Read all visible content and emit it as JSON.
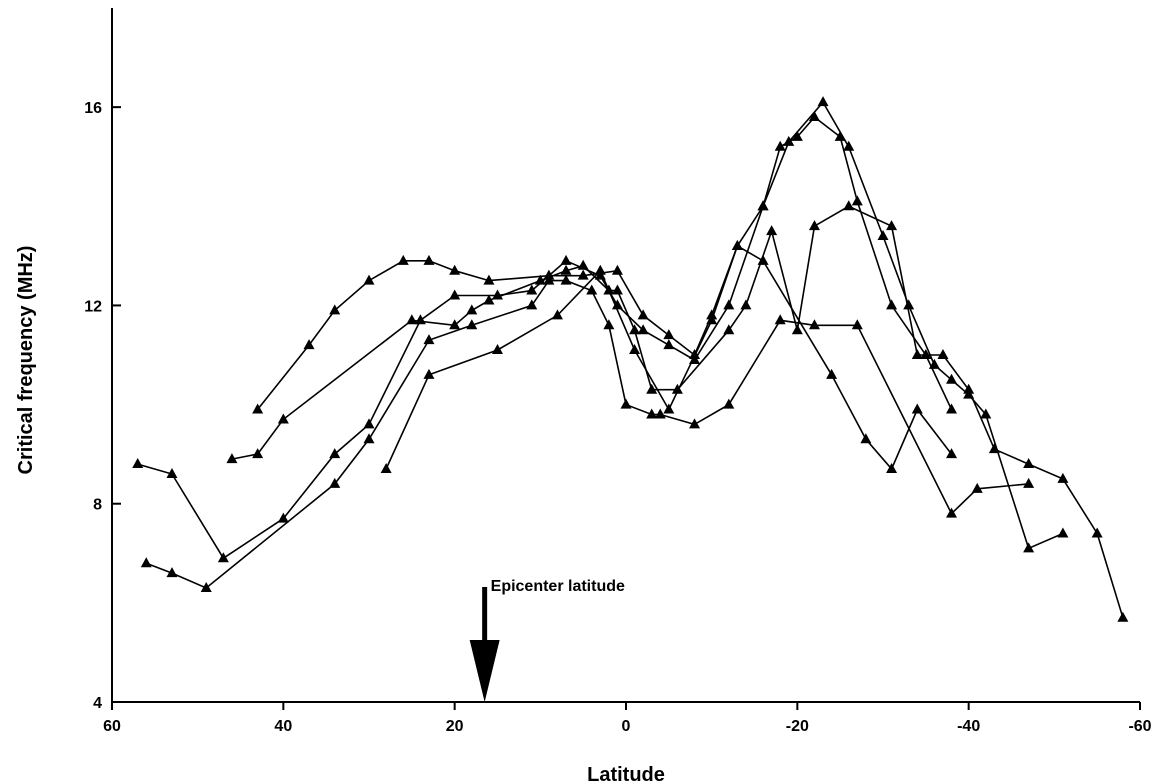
{
  "chart_data": {
    "type": "line",
    "xlabel": "Latitude",
    "ylabel": "Critical frequency (MHz)",
    "xlim": [
      60,
      -60
    ],
    "ylim": [
      4,
      18
    ],
    "x_ticks": [
      60,
      40,
      20,
      0,
      -20,
      -40,
      -60
    ],
    "y_ticks": [
      4,
      8,
      12,
      16
    ],
    "x_tick_labels": [
      "60",
      "40",
      "20",
      "0",
      "-20",
      "-40",
      "-60"
    ],
    "y_tick_labels": [
      "4",
      "8",
      "12",
      "16"
    ],
    "grid": false,
    "marker": "triangle",
    "annotation": {
      "text": "Epicenter latitude",
      "x": 16.5
    },
    "series": [
      {
        "values": [
          [
            57,
            8.8
          ],
          [
            53,
            8.6
          ],
          [
            47,
            6.9
          ],
          [
            40,
            7.7
          ],
          [
            34,
            9.0
          ],
          [
            30,
            9.6
          ],
          [
            24,
            11.7
          ],
          [
            20,
            12.2
          ],
          [
            15,
            12.2
          ],
          [
            11,
            12.3
          ],
          [
            7,
            12.9
          ],
          [
            3,
            12.6
          ],
          [
            1,
            12.0
          ],
          [
            -2,
            11.5
          ],
          [
            -5,
            11.2
          ],
          [
            -8,
            10.9
          ],
          [
            -12,
            12.0
          ],
          [
            -16,
            14.0
          ],
          [
            -18,
            15.2
          ],
          [
            -20,
            15.4
          ],
          [
            -22,
            15.8
          ],
          [
            -25,
            15.4
          ],
          [
            -27,
            14.1
          ],
          [
            -31,
            12.0
          ],
          [
            -35,
            11.0
          ],
          [
            -38,
            9.9
          ]
        ]
      },
      {
        "values": [
          [
            43,
            9.9
          ],
          [
            37,
            11.2
          ],
          [
            34,
            11.9
          ],
          [
            30,
            12.5
          ],
          [
            26,
            12.9
          ],
          [
            23,
            12.9
          ],
          [
            20,
            12.7
          ],
          [
            16,
            12.5
          ],
          [
            9,
            12.6
          ],
          [
            5,
            12.6
          ],
          [
            1,
            12.7
          ],
          [
            -2,
            11.8
          ],
          [
            -5,
            11.4
          ],
          [
            -8,
            11.0
          ],
          [
            -10,
            11.8
          ],
          [
            -13,
            13.2
          ],
          [
            -16,
            14.0
          ],
          [
            -19,
            15.3
          ],
          [
            -23,
            16.1
          ],
          [
            -26,
            15.2
          ],
          [
            -30,
            13.4
          ],
          [
            -33,
            12.0
          ],
          [
            -36,
            10.8
          ],
          [
            -38,
            10.5
          ],
          [
            -40,
            10.2
          ],
          [
            -42,
            9.8
          ],
          [
            -47,
            7.1
          ],
          [
            -51,
            7.4
          ]
        ]
      },
      {
        "values": [
          [
            46,
            8.9
          ],
          [
            43,
            9.0
          ],
          [
            40,
            9.7
          ],
          [
            25,
            11.7
          ],
          [
            20,
            11.6
          ],
          [
            18,
            11.9
          ],
          [
            16,
            12.1
          ],
          [
            10,
            12.5
          ],
          [
            7,
            12.7
          ],
          [
            5,
            12.8
          ],
          [
            2,
            12.3
          ],
          [
            1,
            12.3
          ],
          [
            -1,
            11.5
          ],
          [
            -3,
            10.3
          ],
          [
            -6,
            10.3
          ],
          [
            -12,
            11.5
          ],
          [
            -14,
            12.0
          ],
          [
            -17,
            13.5
          ],
          [
            -20,
            11.5
          ],
          [
            -22,
            13.6
          ],
          [
            -26,
            14.0
          ],
          [
            -31,
            13.6
          ],
          [
            -34,
            11.0
          ],
          [
            -37,
            11.0
          ],
          [
            -40,
            10.3
          ],
          [
            -43,
            9.1
          ],
          [
            -47,
            8.8
          ],
          [
            -51,
            8.5
          ],
          [
            -55,
            7.4
          ],
          [
            -58,
            5.7
          ]
        ]
      },
      {
        "values": [
          [
            56,
            6.8
          ],
          [
            53,
            6.6
          ],
          [
            49,
            6.3
          ],
          [
            34,
            8.4
          ],
          [
            30,
            9.3
          ],
          [
            23,
            11.3
          ],
          [
            18,
            11.6
          ],
          [
            11,
            12.0
          ],
          [
            9,
            12.5
          ],
          [
            7,
            12.5
          ],
          [
            4,
            12.3
          ],
          [
            2,
            11.6
          ],
          [
            0,
            10.0
          ],
          [
            -3,
            9.8
          ],
          [
            -4,
            9.8
          ],
          [
            -8,
            9.6
          ],
          [
            -12,
            10.0
          ],
          [
            -18,
            11.7
          ],
          [
            -22,
            11.6
          ],
          [
            -27,
            11.6
          ],
          [
            -38,
            7.8
          ],
          [
            -41,
            8.3
          ],
          [
            -47,
            8.4
          ]
        ]
      },
      {
        "values": [
          [
            28,
            8.7
          ],
          [
            23,
            10.6
          ],
          [
            15,
            11.1
          ],
          [
            8,
            11.8
          ],
          [
            3,
            12.7
          ],
          [
            -1,
            11.1
          ],
          [
            -5,
            9.9
          ],
          [
            -10,
            11.7
          ],
          [
            -13,
            13.2
          ],
          [
            -16,
            12.9
          ],
          [
            -24,
            10.6
          ],
          [
            -28,
            9.3
          ],
          [
            -31,
            8.7
          ],
          [
            -34,
            9.9
          ],
          [
            -38,
            9.0
          ]
        ]
      }
    ]
  }
}
